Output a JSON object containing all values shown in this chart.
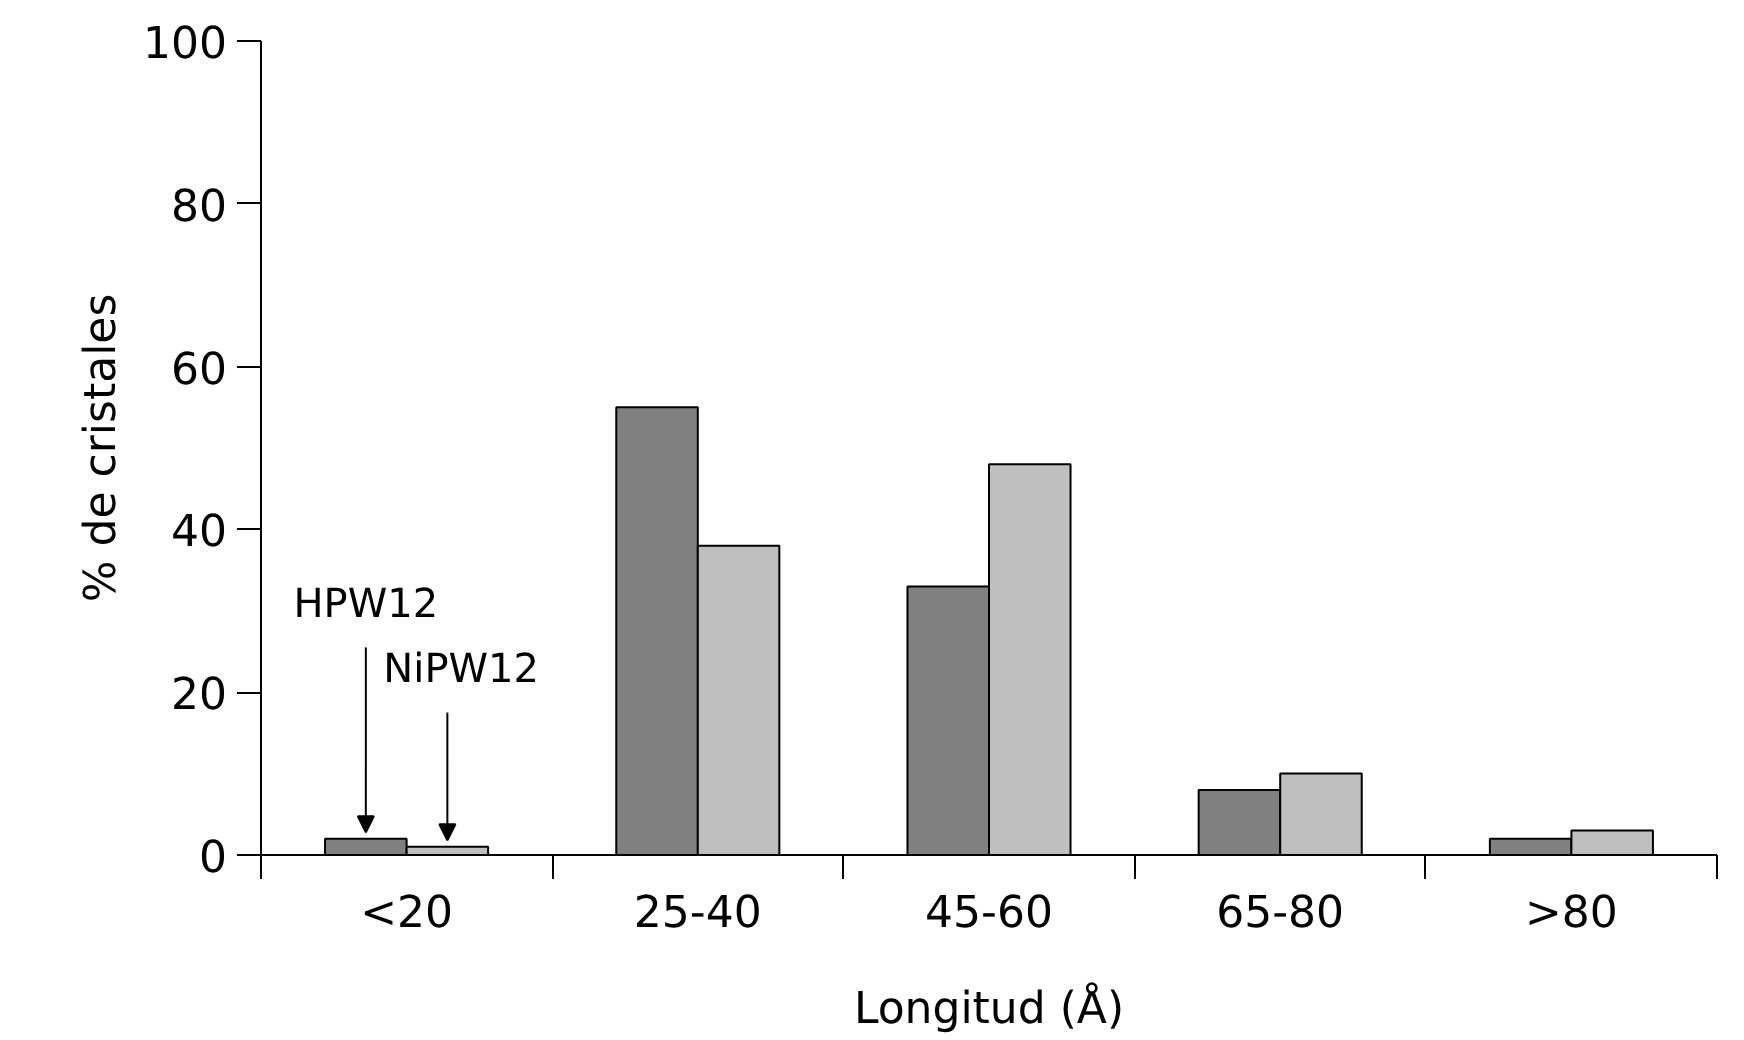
{
  "chart_data": {
    "type": "bar",
    "xlabel": "Longitud (Å)",
    "ylabel": "% de cristales",
    "categories": [
      "<20",
      "25-40",
      "45-60",
      "65-80",
      ">80"
    ],
    "series": [
      {
        "name": "HPW12",
        "color": "#808080",
        "values": [
          2,
          55,
          33,
          8,
          2
        ]
      },
      {
        "name": "NiPW12",
        "color": "#bfbfbf",
        "values": [
          1,
          38,
          48,
          10,
          3
        ]
      }
    ],
    "ylim": [
      0,
      100
    ],
    "yticks": [
      0,
      20,
      40,
      60,
      80,
      100
    ],
    "grid": false
  }
}
